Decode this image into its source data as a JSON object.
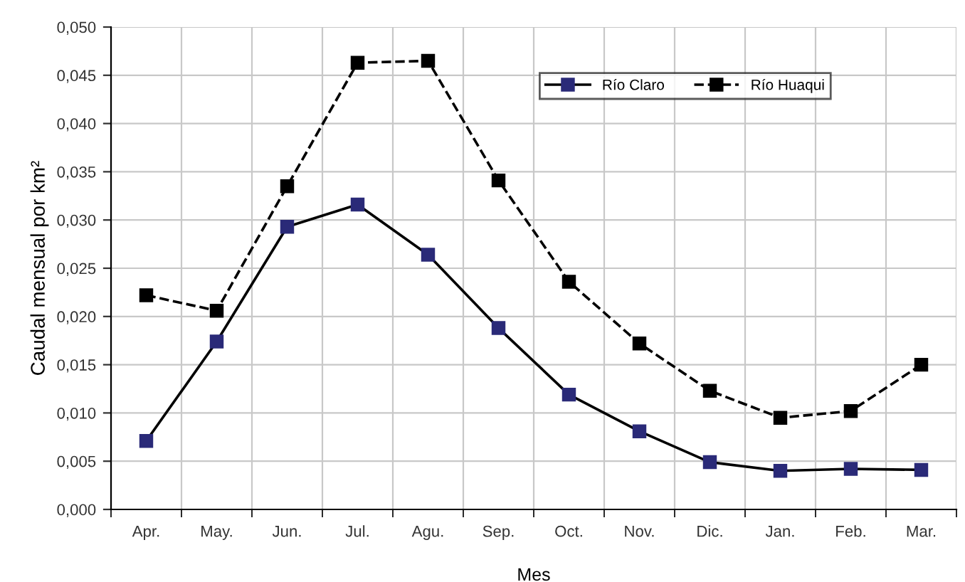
{
  "chart_data": {
    "type": "line",
    "xlabel": "Mes",
    "ylabel": "Caudal mensual por km²",
    "categories": [
      "Apr.",
      "May.",
      "Jun.",
      "Jul.",
      "Agu.",
      "Sep.",
      "Oct.",
      "Nov.",
      "Dic.",
      "Jan.",
      "Feb.",
      "Mar."
    ],
    "series": [
      {
        "name": "Río Claro",
        "color": "#2a2a78",
        "line_style": "solid",
        "values": [
          0.0071,
          0.0174,
          0.0293,
          0.0316,
          0.0264,
          0.0188,
          0.0119,
          0.0081,
          0.0049,
          0.004,
          0.0042,
          0.0041
        ]
      },
      {
        "name": "Río Huaqui",
        "color": "#000000",
        "line_style": "dashed",
        "values": [
          0.0222,
          0.0206,
          0.0335,
          0.0463,
          0.0465,
          0.0341,
          0.0236,
          0.0172,
          0.0123,
          0.0095,
          0.0102,
          0.015
        ]
      }
    ],
    "ylim": [
      0,
      0.05
    ],
    "yticks": [
      {
        "value": 0,
        "label": "0,000"
      },
      {
        "value": 0.005,
        "label": "0,005"
      },
      {
        "value": 0.01,
        "label": "0,010"
      },
      {
        "value": 0.015,
        "label": "0,015"
      },
      {
        "value": 0.02,
        "label": "0,020"
      },
      {
        "value": 0.025,
        "label": "0,025"
      },
      {
        "value": 0.03,
        "label": "0,030"
      },
      {
        "value": 0.035,
        "label": "0,035"
      },
      {
        "value": 0.04,
        "label": "0,040"
      },
      {
        "value": 0.045,
        "label": "0,045"
      },
      {
        "value": 0.05,
        "label": "0,050"
      }
    ],
    "grid": true,
    "legend": "top right",
    "marker": "square"
  }
}
